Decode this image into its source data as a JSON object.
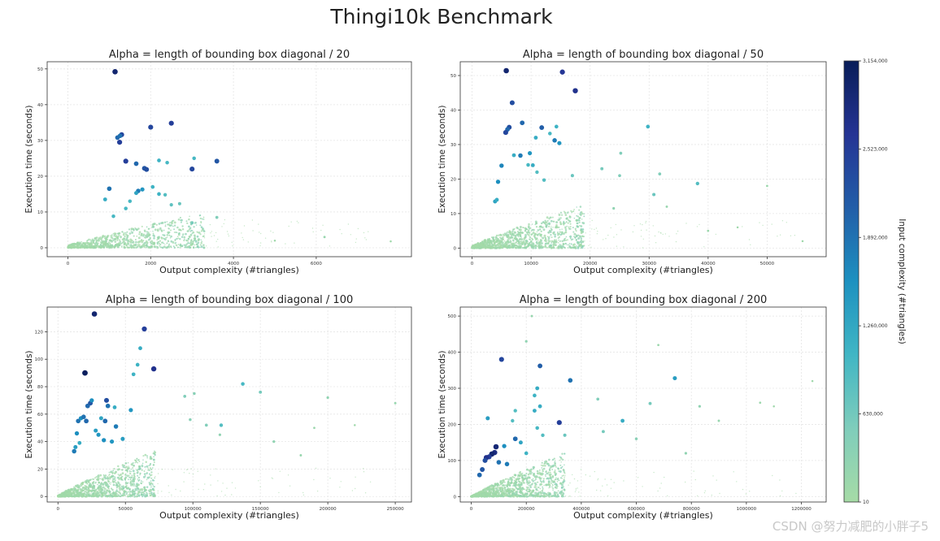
{
  "figure": {
    "title": "Thingi10k Benchmark",
    "watermark": "CSDN @努力减肥的小胖子5"
  },
  "colorbar": {
    "label": "Input complexity (#triangles)",
    "ticks": [
      10,
      630000,
      1260000,
      1892000,
      2523000,
      3154000
    ],
    "tick_labels": [
      "10",
      "630,000",
      "1,260,000",
      "1,892,000",
      "2,523,000",
      "3,154,000"
    ],
    "range": [
      10,
      3154000
    ],
    "colormap_stops": [
      "#a6dba6",
      "#7fcdbb",
      "#41b6c4",
      "#1d91c0",
      "#225ea8",
      "#253494",
      "#081d58"
    ]
  },
  "chart_data": [
    {
      "type": "scatter",
      "title": "Alpha = length of bounding box diagonal / 20",
      "xlabel": "Output complexity (#triangles)",
      "ylabel": "Execution time (seconds)",
      "xlim": [
        -500,
        8300
      ],
      "ylim": [
        -2.5,
        52
      ],
      "xticks": [
        0,
        2000,
        4000,
        6000
      ],
      "yticks": [
        0,
        10,
        20,
        30,
        40,
        50
      ],
      "grid": true,
      "cloud": {
        "xmax": 3300,
        "ymax": 8.5,
        "n": 900
      },
      "points": [
        [
          1140,
          49.2,
          2950000
        ],
        [
          1200,
          30.8,
          2000000
        ],
        [
          1300,
          31.6,
          2400000
        ],
        [
          1260,
          31.3,
          1900000
        ],
        [
          1250,
          29.5,
          2500000
        ],
        [
          2000,
          33.7,
          2400000
        ],
        [
          2500,
          34.8,
          2500000
        ],
        [
          3600,
          24.2,
          2200000
        ],
        [
          3000,
          22.0,
          2400000
        ],
        [
          1400,
          24.2,
          2500000
        ],
        [
          1650,
          23.5,
          2000000
        ],
        [
          1850,
          22.2,
          2200000
        ],
        [
          1900,
          21.9,
          2300000
        ],
        [
          2200,
          24.4,
          1100000
        ],
        [
          2400,
          23.8,
          1000000
        ],
        [
          3050,
          25.0,
          1000000
        ],
        [
          1000,
          16.5,
          1900000
        ],
        [
          900,
          13.5,
          1200000
        ],
        [
          1700,
          15.9,
          1800000
        ],
        [
          1800,
          16.3,
          1500000
        ],
        [
          1650,
          15.3,
          1300000
        ],
        [
          2050,
          17.0,
          1100000
        ],
        [
          2200,
          15.0,
          1100000
        ],
        [
          2350,
          14.8,
          900000
        ],
        [
          1400,
          11.0,
          1000000
        ],
        [
          1500,
          13.0,
          1000000
        ],
        [
          2500,
          12.0,
          800000
        ],
        [
          2700,
          12.3,
          700000
        ],
        [
          1100,
          8.8,
          1000000
        ],
        [
          3000,
          7.0,
          600000
        ],
        [
          3600,
          8.5,
          500000
        ],
        [
          6200,
          3.0,
          200000
        ],
        [
          7800,
          1.8,
          100000
        ],
        [
          5000,
          2.0,
          100000
        ]
      ]
    },
    {
      "type": "scatter",
      "title": "Alpha = length of bounding box diagonal / 50",
      "xlabel": "Output complexity (#triangles)",
      "ylabel": "Execution time (seconds)",
      "xlim": [
        -2000,
        60000
      ],
      "ylim": [
        -2.5,
        54
      ],
      "xticks": [
        0,
        10000,
        20000,
        30000,
        40000,
        50000
      ],
      "yticks": [
        0,
        10,
        20,
        30,
        40,
        50
      ],
      "grid": true,
      "cloud": {
        "xmax": 19000,
        "ymax": 11,
        "n": 1100
      },
      "points": [
        [
          5800,
          51.4,
          2950000
        ],
        [
          15300,
          51.0,
          2600000
        ],
        [
          17500,
          45.6,
          2700000
        ],
        [
          6800,
          42.1,
          2300000
        ],
        [
          6300,
          35.0,
          2300000
        ],
        [
          6000,
          34.4,
          2000000
        ],
        [
          5700,
          33.5,
          2400000
        ],
        [
          8500,
          36.3,
          2000000
        ],
        [
          10800,
          32.0,
          1200000
        ],
        [
          11800,
          34.9,
          2100000
        ],
        [
          14300,
          35.2,
          1100000
        ],
        [
          13200,
          33.2,
          1000000
        ],
        [
          14000,
          31.2,
          1800000
        ],
        [
          14800,
          30.4,
          1500000
        ],
        [
          29800,
          35.2,
          1100000
        ],
        [
          9800,
          27.5,
          1500000
        ],
        [
          8200,
          26.8,
          1800000
        ],
        [
          7100,
          26.9,
          1200000
        ],
        [
          9500,
          24.1,
          1000000
        ],
        [
          10300,
          24.0,
          1200000
        ],
        [
          11000,
          22.0,
          900000
        ],
        [
          12200,
          19.7,
          900000
        ],
        [
          5000,
          23.9,
          1700000
        ],
        [
          4400,
          19.2,
          1600000
        ],
        [
          3900,
          13.5,
          1300000
        ],
        [
          4200,
          14.0,
          1200000
        ],
        [
          17000,
          21.0,
          700000
        ],
        [
          22000,
          23.0,
          600000
        ],
        [
          25000,
          21.0,
          500000
        ],
        [
          25200,
          27.5,
          500000
        ],
        [
          31800,
          21.5,
          500000
        ],
        [
          38200,
          18.7,
          900000
        ],
        [
          30800,
          15.5,
          700000
        ],
        [
          24000,
          11.5,
          300000
        ],
        [
          33000,
          12.0,
          200000
        ],
        [
          50000,
          18.0,
          150000
        ],
        [
          45000,
          6.0,
          100000
        ],
        [
          56000,
          2.0,
          100000
        ],
        [
          40000,
          5.0,
          150000
        ]
      ]
    },
    {
      "type": "scatter",
      "title": "Alpha = length of bounding box diagonal / 100",
      "xlabel": "Output complexity (#triangles)",
      "ylabel": "Execution time (seconds)",
      "xlim": [
        -8000,
        262000
      ],
      "ylim": [
        -4,
        138
      ],
      "xticks": [
        0,
        50000,
        100000,
        150000,
        200000,
        250000
      ],
      "yticks": [
        0,
        20,
        40,
        60,
        80,
        100,
        120
      ],
      "grid": true,
      "cloud": {
        "xmax": 72000,
        "ymax": 30,
        "n": 1200
      },
      "points": [
        [
          27000,
          133,
          2950000
        ],
        [
          64000,
          122,
          2500000
        ],
        [
          61000,
          108,
          1200000
        ],
        [
          59000,
          96,
          1100000
        ],
        [
          56000,
          89,
          1100000
        ],
        [
          20000,
          90,
          3100000
        ],
        [
          71000,
          93,
          2700000
        ],
        [
          36000,
          70,
          2300000
        ],
        [
          24000,
          68,
          2200000
        ],
        [
          22000,
          66,
          2000000
        ],
        [
          25000,
          70,
          1600000
        ],
        [
          37000,
          66,
          1900000
        ],
        [
          42000,
          65,
          1200000
        ],
        [
          54000,
          63,
          1500000
        ],
        [
          15000,
          55,
          1900000
        ],
        [
          17000,
          57,
          1600000
        ],
        [
          19000,
          58,
          1900000
        ],
        [
          21000,
          55,
          2000000
        ],
        [
          32000,
          57,
          1300000
        ],
        [
          35000,
          55,
          2000000
        ],
        [
          43000,
          51,
          1800000
        ],
        [
          28000,
          48,
          1400000
        ],
        [
          30000,
          45,
          1500000
        ],
        [
          14000,
          46,
          1600000
        ],
        [
          12000,
          33,
          1800000
        ],
        [
          13000,
          36,
          1400000
        ],
        [
          16000,
          39,
          1200000
        ],
        [
          34000,
          41,
          1600000
        ],
        [
          40000,
          40,
          1500000
        ],
        [
          48000,
          42,
          1400000
        ],
        [
          137000,
          82,
          1000000
        ],
        [
          150000,
          76,
          600000
        ],
        [
          94000,
          73,
          500000
        ],
        [
          101000,
          75,
          400000
        ],
        [
          121000,
          52,
          900000
        ],
        [
          110000,
          52,
          500000
        ],
        [
          98000,
          56,
          400000
        ],
        [
          160000,
          40,
          300000
        ],
        [
          200000,
          72,
          300000
        ],
        [
          250000,
          68,
          200000
        ],
        [
          190000,
          50,
          150000
        ],
        [
          220000,
          52,
          100000
        ],
        [
          180000,
          30,
          200000
        ],
        [
          120000,
          45,
          300000
        ]
      ]
    },
    {
      "type": "scatter",
      "title": "Alpha = length of bounding box diagonal / 200",
      "xlabel": "Output complexity (#triangles)",
      "ylabel": "Execution time (seconds)",
      "xlim": [
        -40000,
        1290000
      ],
      "ylim": [
        -15,
        525
      ],
      "xticks": [
        0,
        200000,
        400000,
        600000,
        800000,
        1000000,
        1200000
      ],
      "yticks": [
        0,
        100,
        200,
        300,
        400,
        500
      ],
      "grid": true,
      "cloud": {
        "xmax": 340000,
        "ymax": 110,
        "n": 1200
      },
      "points": [
        [
          110000,
          380,
          2400000
        ],
        [
          250000,
          362,
          2100000
        ],
        [
          360000,
          322,
          1900000
        ],
        [
          740000,
          328,
          1400000
        ],
        [
          240000,
          300,
          1200000
        ],
        [
          230000,
          280,
          1100000
        ],
        [
          250000,
          250,
          1200000
        ],
        [
          230000,
          238,
          1200000
        ],
        [
          320000,
          205,
          2500000
        ],
        [
          160000,
          238,
          900000
        ],
        [
          150000,
          210,
          900000
        ],
        [
          60000,
          217,
          1400000
        ],
        [
          550000,
          210,
          1200000
        ],
        [
          650000,
          258,
          600000
        ],
        [
          460000,
          270,
          500000
        ],
        [
          200000,
          430,
          300000
        ],
        [
          220000,
          500,
          200000
        ],
        [
          830000,
          250,
          300000
        ],
        [
          900000,
          210,
          200000
        ],
        [
          1050000,
          260,
          150000
        ],
        [
          1100000,
          250,
          100000
        ],
        [
          1240000,
          320,
          100000
        ],
        [
          680000,
          420,
          150000
        ],
        [
          160000,
          160,
          2000000
        ],
        [
          180000,
          150,
          1300000
        ],
        [
          120000,
          140,
          1600000
        ],
        [
          90000,
          138,
          2900000
        ],
        [
          85000,
          122,
          2800000
        ],
        [
          75000,
          118,
          2950000
        ],
        [
          65000,
          110,
          2500000
        ],
        [
          55000,
          108,
          2700000
        ],
        [
          50000,
          100,
          2300000
        ],
        [
          40000,
          75,
          2200000
        ],
        [
          30000,
          60,
          2000000
        ],
        [
          100000,
          95,
          1900000
        ],
        [
          130000,
          90,
          1800000
        ],
        [
          200000,
          120,
          1100000
        ],
        [
          240000,
          190,
          1000000
        ],
        [
          260000,
          170,
          900000
        ],
        [
          340000,
          170,
          700000
        ],
        [
          480000,
          180,
          600000
        ],
        [
          600000,
          160,
          400000
        ],
        [
          780000,
          120,
          300000
        ]
      ]
    }
  ]
}
